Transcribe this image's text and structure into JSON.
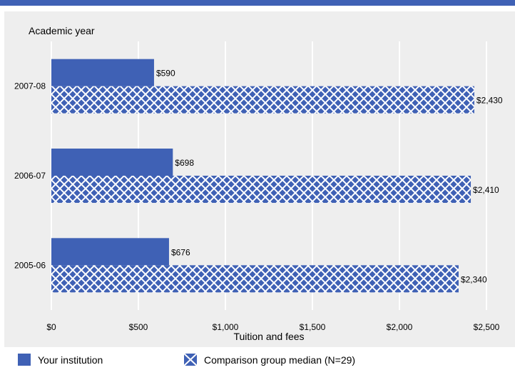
{
  "chart_data": {
    "type": "bar",
    "orientation": "horizontal",
    "categories": [
      "2007-08",
      "2006-07",
      "2005-06"
    ],
    "series": [
      {
        "name": "Your institution",
        "values": [
          590,
          698,
          676
        ],
        "labels": [
          "$590",
          "$698",
          "$676"
        ],
        "pattern": "solid"
      },
      {
        "name": "Comparison group median (N=29)",
        "values": [
          2430,
          2410,
          2340
        ],
        "labels": [
          "$2,430",
          "$2,410",
          "$2,340"
        ],
        "pattern": "crosshatch"
      }
    ],
    "xlabel": "Tuition and fees",
    "ylabel": "Academic year",
    "xlim": [
      0,
      2500
    ],
    "xticks": [
      0,
      500,
      1000,
      1500,
      2000,
      2500
    ],
    "xtick_labels": [
      "$0",
      "$500",
      "$1,000",
      "$1,500",
      "$2,000",
      "$2,500"
    ],
    "grid": true,
    "legend_position": "bottom",
    "colors": {
      "bar": "#3f61b5",
      "hatch": "#ffffff",
      "grid": "#ffffff",
      "panel": "#eeeeee",
      "accent_bar": "#3f61b5"
    }
  }
}
